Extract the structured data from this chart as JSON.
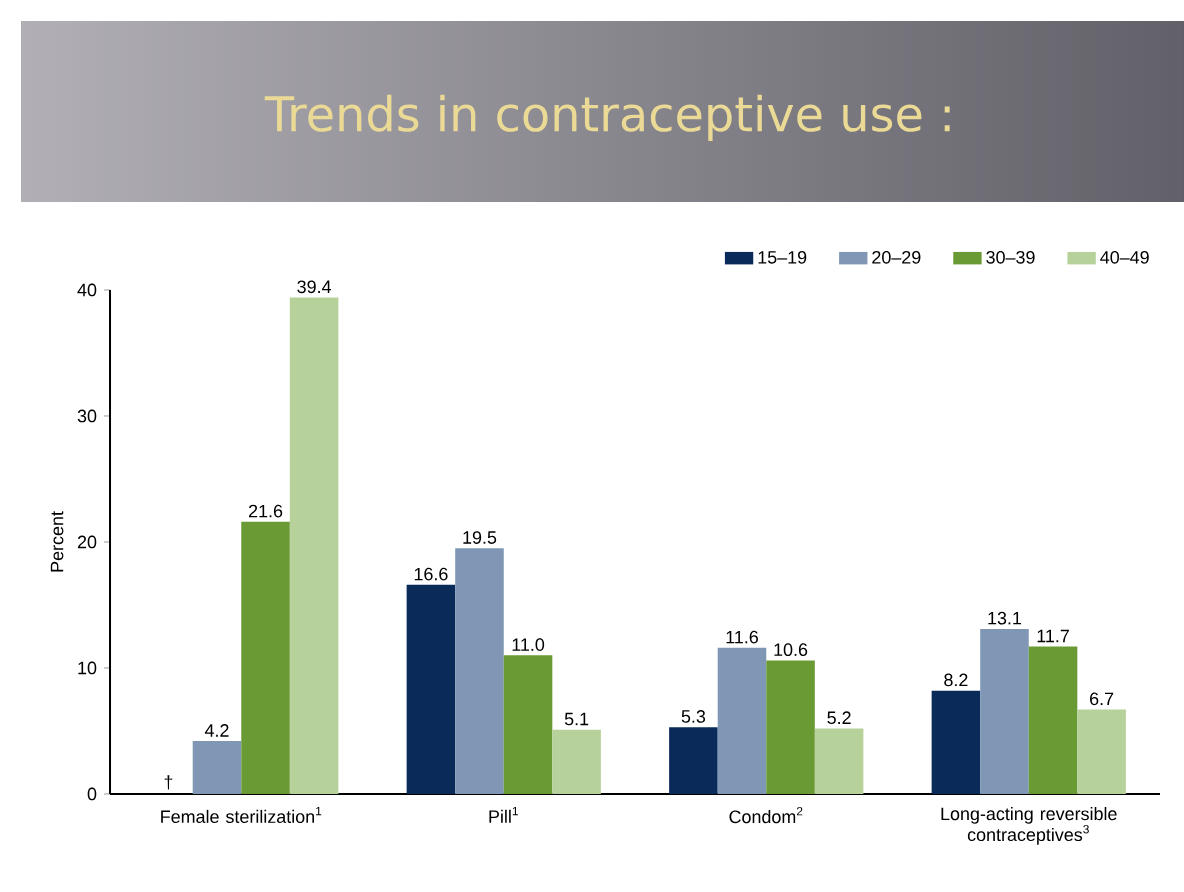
{
  "chart_data": {
    "type": "bar",
    "title": "Trends in contraceptive use :",
    "ylabel": "Percent",
    "categories": [
      "Female sterilization$^{1}$",
      "Pill$^{1}$",
      "Condom$^{2}$",
      "Long-acting reversible contraceptives$^{3}$"
    ],
    "series": [
      {
        "name": "15–19",
        "color": "#0a2a5a",
        "values": [
          null,
          16.6,
          5.3,
          8.2
        ],
        "value_labels": [
          "†",
          "16.6",
          "5.3",
          "8.2"
        ]
      },
      {
        "name": "20–29",
        "color": "#7f97b4",
        "values": [
          4.2,
          19.5,
          11.6,
          13.1
        ],
        "value_labels": [
          "4.2",
          "19.5",
          "11.6",
          "13.1"
        ]
      },
      {
        "name": "30–39",
        "color": "#6a9a34",
        "values": [
          21.6,
          11.0,
          10.6,
          11.7
        ],
        "value_labels": [
          "21.6",
          "11.0",
          "10.6",
          "11.7"
        ]
      },
      {
        "name": "40–49",
        "color": "#b6d29a",
        "values": [
          39.4,
          5.1,
          5.2,
          6.7
        ],
        "value_labels": [
          "39.4",
          "5.1",
          "5.2",
          "6.7"
        ]
      }
    ],
    "ylim": [
      0,
      40
    ],
    "yticks": [
      0,
      10,
      20,
      30,
      40
    ],
    "grid": false,
    "legend": "top right"
  }
}
